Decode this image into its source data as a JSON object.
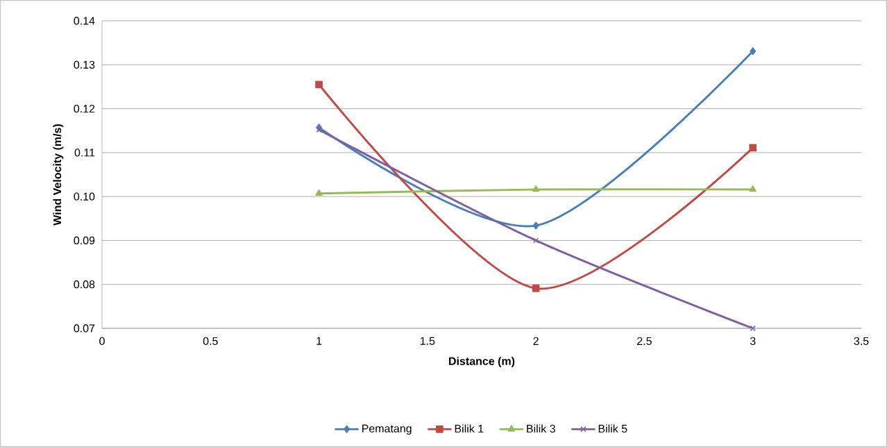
{
  "chart_data": {
    "type": "line",
    "xlabel": "Distance (m)",
    "ylabel": "Wind Velocity (m/s)",
    "x": [
      1,
      2,
      3
    ],
    "series": [
      {
        "name": "Pematang",
        "color": "#4a7ebb",
        "marker": "diamond",
        "values": [
          0.1157,
          0.0934,
          0.1331
        ]
      },
      {
        "name": "Bilik 1",
        "color": "#be4b48",
        "marker": "square",
        "values": [
          0.1255,
          0.0791,
          0.1111
        ]
      },
      {
        "name": "Bilik 3",
        "color": "#98b954",
        "marker": "triangle",
        "values": [
          0.1007,
          0.1016,
          0.1016
        ]
      },
      {
        "name": "Bilik 5",
        "color": "#7d60a0",
        "marker": "cross",
        "values": [
          0.1152,
          0.09,
          0.07
        ]
      }
    ],
    "xlim": [
      0,
      3.5
    ],
    "xticks": [
      0,
      0.5,
      1,
      1.5,
      2,
      2.5,
      3,
      3.5
    ],
    "ylim": [
      0.07,
      0.14
    ],
    "yticks": [
      0.07,
      0.08,
      0.09,
      {
        "value": 0.1,
        "label": "0.10"
      },
      0.11,
      0.12,
      0.13,
      0.14
    ],
    "grid": "y",
    "legend": "bottom",
    "line_style": "solid"
  }
}
